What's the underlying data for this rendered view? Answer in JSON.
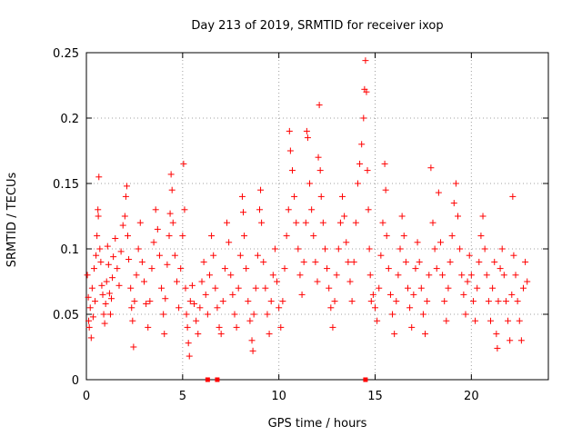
{
  "chart_data": {
    "type": "scatter",
    "title": "Day 213 of 2019, SRMTID for receiver ixop",
    "xlabel": "GPS time / hours",
    "ylabel": "SRMTID / TECUs",
    "xlim": [
      0,
      24
    ],
    "ylim": [
      0,
      0.25
    ],
    "x_ticks": [
      0,
      5,
      10,
      15,
      20
    ],
    "x_tick_labels": [
      "0",
      "5",
      "10",
      "15",
      "20"
    ],
    "y_ticks": [
      0,
      0.05,
      0.1,
      0.15,
      0.2,
      0.25
    ],
    "y_tick_labels": [
      "0",
      "0.05",
      "0.1",
      "0.15",
      "0.2",
      "0.25"
    ],
    "grid": true,
    "marker": "+",
    "color": "#ff0000",
    "series": [
      {
        "name": "SRMTID",
        "points": [
          [
            0.05,
            0.08
          ],
          [
            0.1,
            0.063
          ],
          [
            0.12,
            0.045
          ],
          [
            0.15,
            0.04
          ],
          [
            0.2,
            0.055
          ],
          [
            0.25,
            0.032
          ],
          [
            0.3,
            0.07
          ],
          [
            0.35,
            0.048
          ],
          [
            0.4,
            0.085
          ],
          [
            0.45,
            0.06
          ],
          [
            0.5,
            0.095
          ],
          [
            0.55,
            0.11
          ],
          [
            0.6,
            0.13
          ],
          [
            0.62,
            0.125
          ],
          [
            0.65,
            0.155
          ],
          [
            0.7,
            0.1
          ],
          [
            0.75,
            0.09
          ],
          [
            0.8,
            0.072
          ],
          [
            0.85,
            0.065
          ],
          [
            0.9,
            0.05
          ],
          [
            0.95,
            0.043
          ],
          [
            1.0,
            0.058
          ],
          [
            1.05,
            0.075
          ],
          [
            1.1,
            0.102
          ],
          [
            1.15,
            0.088
          ],
          [
            1.2,
            0.066
          ],
          [
            1.25,
            0.05
          ],
          [
            1.3,
            0.062
          ],
          [
            1.35,
            0.078
          ],
          [
            1.4,
            0.094
          ],
          [
            1.5,
            0.108
          ],
          [
            1.6,
            0.085
          ],
          [
            1.7,
            0.072
          ],
          [
            1.8,
            0.098
          ],
          [
            1.9,
            0.118
          ],
          [
            2.0,
            0.125
          ],
          [
            2.05,
            0.14
          ],
          [
            2.1,
            0.148
          ],
          [
            2.15,
            0.11
          ],
          [
            2.2,
            0.092
          ],
          [
            2.3,
            0.07
          ],
          [
            2.35,
            0.055
          ],
          [
            2.4,
            0.045
          ],
          [
            2.45,
            0.025
          ],
          [
            2.5,
            0.06
          ],
          [
            2.6,
            0.08
          ],
          [
            2.7,
            0.1
          ],
          [
            2.8,
            0.12
          ],
          [
            2.9,
            0.09
          ],
          [
            3.0,
            0.075
          ],
          [
            3.1,
            0.058
          ],
          [
            3.2,
            0.04
          ],
          [
            3.3,
            0.06
          ],
          [
            3.4,
            0.085
          ],
          [
            3.5,
            0.105
          ],
          [
            3.6,
            0.13
          ],
          [
            3.7,
            0.115
          ],
          [
            3.8,
            0.095
          ],
          [
            3.9,
            0.07
          ],
          [
            4.0,
            0.05
          ],
          [
            4.05,
            0.035
          ],
          [
            4.1,
            0.062
          ],
          [
            4.2,
            0.088
          ],
          [
            4.3,
            0.11
          ],
          [
            4.35,
            0.127
          ],
          [
            4.4,
            0.157
          ],
          [
            4.45,
            0.145
          ],
          [
            4.5,
            0.12
          ],
          [
            4.6,
            0.095
          ],
          [
            4.7,
            0.075
          ],
          [
            4.8,
            0.055
          ],
          [
            4.9,
            0.085
          ],
          [
            5.0,
            0.11
          ],
          [
            5.05,
            0.165
          ],
          [
            5.1,
            0.13
          ],
          [
            5.15,
            0.07
          ],
          [
            5.2,
            0.05
          ],
          [
            5.25,
            0.04
          ],
          [
            5.3,
            0.028
          ],
          [
            5.35,
            0.018
          ],
          [
            5.4,
            0.06
          ],
          [
            5.5,
            0.072
          ],
          [
            5.6,
            0.058
          ],
          [
            5.7,
            0.045
          ],
          [
            5.8,
            0.035
          ],
          [
            5.9,
            0.055
          ],
          [
            6.0,
            0.075
          ],
          [
            6.1,
            0.09
          ],
          [
            6.2,
            0.065
          ],
          [
            6.3,
            0.05
          ],
          [
            6.4,
            0.08
          ],
          [
            6.5,
            0.11
          ],
          [
            6.6,
            0.095
          ],
          [
            6.7,
            0.07
          ],
          [
            6.8,
            0.055
          ],
          [
            6.9,
            0.04
          ],
          [
            7.0,
            0.035
          ],
          [
            7.1,
            0.06
          ],
          [
            7.2,
            0.085
          ],
          [
            7.3,
            0.12
          ],
          [
            7.4,
            0.105
          ],
          [
            7.5,
            0.08
          ],
          [
            7.6,
            0.065
          ],
          [
            7.7,
            0.05
          ],
          [
            7.8,
            0.04
          ],
          [
            7.9,
            0.07
          ],
          [
            8.0,
            0.095
          ],
          [
            8.1,
            0.14
          ],
          [
            8.15,
            0.128
          ],
          [
            8.2,
            0.11
          ],
          [
            8.3,
            0.085
          ],
          [
            8.4,
            0.06
          ],
          [
            8.5,
            0.045
          ],
          [
            8.6,
            0.03
          ],
          [
            8.65,
            0.022
          ],
          [
            8.7,
            0.05
          ],
          [
            8.8,
            0.07
          ],
          [
            8.9,
            0.095
          ],
          [
            9.0,
            0.13
          ],
          [
            9.05,
            0.145
          ],
          [
            9.1,
            0.12
          ],
          [
            9.2,
            0.09
          ],
          [
            9.3,
            0.07
          ],
          [
            9.4,
            0.05
          ],
          [
            9.5,
            0.035
          ],
          [
            9.6,
            0.06
          ],
          [
            9.7,
            0.08
          ],
          [
            9.8,
            0.1
          ],
          [
            9.9,
            0.075
          ],
          [
            10.0,
            0.055
          ],
          [
            10.1,
            0.04
          ],
          [
            10.2,
            0.06
          ],
          [
            10.3,
            0.085
          ],
          [
            10.4,
            0.11
          ],
          [
            10.5,
            0.13
          ],
          [
            10.55,
            0.19
          ],
          [
            10.6,
            0.175
          ],
          [
            10.7,
            0.16
          ],
          [
            10.8,
            0.14
          ],
          [
            10.9,
            0.12
          ],
          [
            11.0,
            0.1
          ],
          [
            11.1,
            0.08
          ],
          [
            11.2,
            0.065
          ],
          [
            11.3,
            0.09
          ],
          [
            11.4,
            0.12
          ],
          [
            11.45,
            0.19
          ],
          [
            11.5,
            0.185
          ],
          [
            11.6,
            0.15
          ],
          [
            11.7,
            0.13
          ],
          [
            11.8,
            0.11
          ],
          [
            11.9,
            0.09
          ],
          [
            12.0,
            0.075
          ],
          [
            12.05,
            0.17
          ],
          [
            12.1,
            0.21
          ],
          [
            12.15,
            0.16
          ],
          [
            12.2,
            0.14
          ],
          [
            12.3,
            0.12
          ],
          [
            12.4,
            0.1
          ],
          [
            12.5,
            0.085
          ],
          [
            12.6,
            0.07
          ],
          [
            12.7,
            0.055
          ],
          [
            12.8,
            0.04
          ],
          [
            12.9,
            0.06
          ],
          [
            13.0,
            0.08
          ],
          [
            13.1,
            0.1
          ],
          [
            13.2,
            0.12
          ],
          [
            13.3,
            0.14
          ],
          [
            13.4,
            0.125
          ],
          [
            13.5,
            0.105
          ],
          [
            13.6,
            0.09
          ],
          [
            13.7,
            0.075
          ],
          [
            13.8,
            0.06
          ],
          [
            13.9,
            0.09
          ],
          [
            14.0,
            0.12
          ],
          [
            14.1,
            0.15
          ],
          [
            14.2,
            0.165
          ],
          [
            14.3,
            0.18
          ],
          [
            14.4,
            0.2
          ],
          [
            14.45,
            0.222
          ],
          [
            14.5,
            0.244
          ],
          [
            14.55,
            0.22
          ],
          [
            14.6,
            0.16
          ],
          [
            14.65,
            0.13
          ],
          [
            14.7,
            0.1
          ],
          [
            14.75,
            0.08
          ],
          [
            14.8,
            0.06
          ],
          [
            14.9,
            0.065
          ],
          [
            15.0,
            0.055
          ],
          [
            15.1,
            0.045
          ],
          [
            15.2,
            0.07
          ],
          [
            15.3,
            0.095
          ],
          [
            15.4,
            0.12
          ],
          [
            15.5,
            0.165
          ],
          [
            15.55,
            0.145
          ],
          [
            15.6,
            0.11
          ],
          [
            15.7,
            0.085
          ],
          [
            15.8,
            0.065
          ],
          [
            15.9,
            0.05
          ],
          [
            16.0,
            0.035
          ],
          [
            16.1,
            0.06
          ],
          [
            16.2,
            0.08
          ],
          [
            16.3,
            0.1
          ],
          [
            16.4,
            0.125
          ],
          [
            16.5,
            0.11
          ],
          [
            16.6,
            0.09
          ],
          [
            16.7,
            0.07
          ],
          [
            16.8,
            0.055
          ],
          [
            16.9,
            0.04
          ],
          [
            17.0,
            0.065
          ],
          [
            17.1,
            0.085
          ],
          [
            17.2,
            0.105
          ],
          [
            17.3,
            0.09
          ],
          [
            17.4,
            0.07
          ],
          [
            17.5,
            0.05
          ],
          [
            17.6,
            0.035
          ],
          [
            17.7,
            0.06
          ],
          [
            17.8,
            0.08
          ],
          [
            17.9,
            0.162
          ],
          [
            18.0,
            0.12
          ],
          [
            18.1,
            0.1
          ],
          [
            18.2,
            0.085
          ],
          [
            18.3,
            0.143
          ],
          [
            18.4,
            0.105
          ],
          [
            18.5,
            0.08
          ],
          [
            18.6,
            0.06
          ],
          [
            18.7,
            0.045
          ],
          [
            18.8,
            0.07
          ],
          [
            18.9,
            0.09
          ],
          [
            19.0,
            0.11
          ],
          [
            19.1,
            0.135
          ],
          [
            19.2,
            0.15
          ],
          [
            19.3,
            0.125
          ],
          [
            19.4,
            0.1
          ],
          [
            19.5,
            0.08
          ],
          [
            19.6,
            0.065
          ],
          [
            19.7,
            0.05
          ],
          [
            19.8,
            0.075
          ],
          [
            19.9,
            0.095
          ],
          [
            20.0,
            0.08
          ],
          [
            20.1,
            0.06
          ],
          [
            20.2,
            0.045
          ],
          [
            20.3,
            0.07
          ],
          [
            20.4,
            0.09
          ],
          [
            20.5,
            0.11
          ],
          [
            20.6,
            0.125
          ],
          [
            20.7,
            0.1
          ],
          [
            20.8,
            0.08
          ],
          [
            20.9,
            0.06
          ],
          [
            21.0,
            0.045
          ],
          [
            21.1,
            0.07
          ],
          [
            21.2,
            0.09
          ],
          [
            21.3,
            0.035
          ],
          [
            21.35,
            0.024
          ],
          [
            21.4,
            0.06
          ],
          [
            21.5,
            0.085
          ],
          [
            21.6,
            0.1
          ],
          [
            21.7,
            0.08
          ],
          [
            21.8,
            0.06
          ],
          [
            21.9,
            0.045
          ],
          [
            22.0,
            0.03
          ],
          [
            22.1,
            0.065
          ],
          [
            22.15,
            0.14
          ],
          [
            22.2,
            0.095
          ],
          [
            22.3,
            0.08
          ],
          [
            22.4,
            0.06
          ],
          [
            22.5,
            0.045
          ],
          [
            22.6,
            0.03
          ],
          [
            22.7,
            0.07
          ],
          [
            22.8,
            0.09
          ],
          [
            22.9,
            0.075
          ]
        ]
      }
    ],
    "marker_color": "#ff0000",
    "baseline_markers_x": [
      6.3,
      6.8,
      14.5
    ]
  }
}
